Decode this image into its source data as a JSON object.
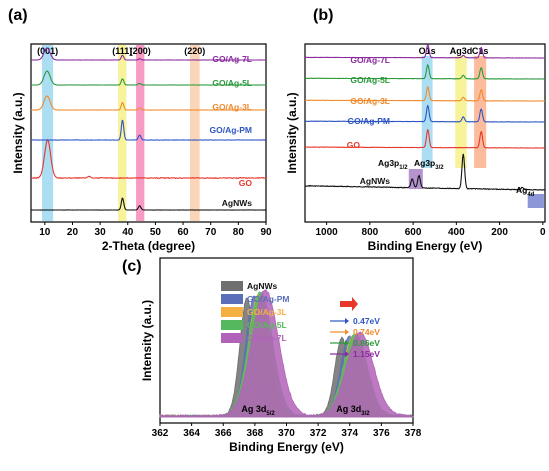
{
  "panels": {
    "a": {
      "letter": "(a)",
      "xlabel": "2-Theta (degree)",
      "ylabel": "Intensity (a.u.)"
    },
    "b": {
      "letter": "(b)",
      "xlabel": "Binding Energy (eV)",
      "ylabel": "Intensity (a.u.)"
    },
    "c": {
      "letter": "(c)",
      "xlabel": "Binding Energy (eV)",
      "ylabel": "Intensity (a.u.)"
    }
  },
  "colors": {
    "AgNWs": "#111111",
    "GO": "#e8372b",
    "GO/Ag-PM": "#2e55c4",
    "GO/Ag-3L": "#f08a2c",
    "GO/Ag-5L": "#2a9a3c",
    "GO/Ag-7L": "#8a2a9e",
    "c_AgNWs": "#6f6f6f",
    "c_GO/Ag-PM": "#5a6fb8",
    "c_GO/Ag-3L": "#f6b042",
    "c_GO/Ag-5L": "#56b85e",
    "c_GO/Ag-7L": "#b163b9"
  },
  "chart_data": [
    {
      "panel": "a",
      "type": "line",
      "xlabel": "2-Theta (degree)",
      "ylabel": "Intensity (a.u.)",
      "xlim": [
        5,
        90
      ],
      "xticks": [
        10,
        20,
        30,
        40,
        50,
        60,
        70,
        80,
        90
      ],
      "series": [
        {
          "name": "AgNWs",
          "peaks": [
            [
              38.1,
              1.0
            ],
            [
              44.3,
              0.35
            ]
          ]
        },
        {
          "name": "GO",
          "peaks": [
            [
              11.0,
              1.0
            ],
            [
              26.0,
              0.05
            ]
          ]
        },
        {
          "name": "GO/Ag-PM",
          "peaks": [
            [
              38.1,
              1.0
            ],
            [
              44.3,
              0.25
            ]
          ]
        },
        {
          "name": "GO/Ag-3L",
          "peaks": [
            [
              10.8,
              1.0
            ],
            [
              38.1,
              0.55
            ],
            [
              44.3,
              0.15
            ]
          ]
        },
        {
          "name": "GO/Ag-5L",
          "peaks": [
            [
              10.8,
              1.0
            ],
            [
              38.1,
              0.45
            ],
            [
              44.3,
              0.12
            ]
          ]
        },
        {
          "name": "GO/Ag-7L",
          "peaks": [
            [
              10.8,
              1.0
            ],
            [
              38.1,
              0.4
            ],
            [
              44.3,
              0.1
            ]
          ]
        }
      ],
      "bands": [
        {
          "label": "(001)",
          "range": [
            9,
            13
          ],
          "color": "#8fd2ef"
        },
        {
          "label": "(111)",
          "range": [
            36.5,
            39.5
          ],
          "color": "#f3ef7a"
        },
        {
          "label": "(200)",
          "range": [
            43,
            46
          ],
          "color": "#f47ab0"
        },
        {
          "label": "(220)",
          "range": [
            62.5,
            66
          ],
          "color": "#f9c79f"
        }
      ]
    },
    {
      "panel": "b",
      "type": "line",
      "xlabel": "Binding Energy (eV)",
      "ylabel": "Intensity (a.u.)",
      "xlim": [
        1100,
        -10
      ],
      "xticks": [
        1000,
        800,
        600,
        400,
        200,
        0
      ],
      "series": [
        {
          "name": "AgNWs",
          "peaks": [
            [
              573,
              0.35
            ],
            [
              604,
              0.25
            ],
            [
              368,
              1.0
            ],
            [
              95,
              0.06
            ]
          ]
        },
        {
          "name": "GO",
          "peaks": [
            [
              532,
              1.0
            ],
            [
              285,
              0.9
            ]
          ]
        },
        {
          "name": "GO/Ag-PM",
          "peaks": [
            [
              532,
              1.0
            ],
            [
              368,
              0.3
            ],
            [
              285,
              0.8
            ]
          ]
        },
        {
          "name": "GO/Ag-3L",
          "peaks": [
            [
              532,
              1.0
            ],
            [
              368,
              0.25
            ],
            [
              285,
              0.8
            ]
          ]
        },
        {
          "name": "GO/Ag-5L",
          "peaks": [
            [
              532,
              1.0
            ],
            [
              368,
              0.25
            ],
            [
              285,
              0.8
            ]
          ]
        },
        {
          "name": "GO/Ag-7L",
          "peaks": [
            [
              532,
              1.0
            ],
            [
              368,
              0.2
            ],
            [
              285,
              0.8
            ]
          ]
        }
      ],
      "bands": [
        {
          "label": "O1s",
          "range": [
            510,
            560
          ],
          "color": "#8fd2ef"
        },
        {
          "label": "Ag3d",
          "range": [
            352,
            405
          ],
          "color": "#f3ef7a"
        },
        {
          "label": "C1s",
          "range": [
            262,
            318
          ],
          "color": "#f9a57d"
        },
        {
          "label": "Ag3p",
          "range": [
            555,
            620
          ],
          "color": "#9b6fbf"
        },
        {
          "label": "Ag4d",
          "range": [
            -5,
            70
          ],
          "color": "#6674c9"
        }
      ],
      "annotations": [
        "Ag3p1/2",
        "Ag3p3/2",
        "Ag4d"
      ]
    },
    {
      "panel": "c",
      "type": "area",
      "xlabel": "Binding Energy (eV)",
      "ylabel": "Intensity (a.u.)",
      "xlim": [
        362,
        378
      ],
      "xticks": [
        362,
        364,
        366,
        368,
        370,
        372,
        374,
        376,
        378
      ],
      "series": [
        {
          "name": "AgNWs",
          "peaks": [
            367.5,
            373.5
          ],
          "shift_eV": 0
        },
        {
          "name": "GO/Ag-PM",
          "peaks": [
            367.97,
            373.97
          ],
          "shift_eV": 0.47
        },
        {
          "name": "GO/Ag-3L",
          "peaks": [
            368.24,
            374.24
          ],
          "shift_eV": 0.74
        },
        {
          "name": "GO/Ag-5L",
          "peaks": [
            368.36,
            374.36
          ],
          "shift_eV": 0.86
        },
        {
          "name": "GO/Ag-7L",
          "peaks": [
            368.65,
            374.65
          ],
          "shift_eV": 1.15
        }
      ],
      "shift_labels": [
        "0.47eV",
        "0.74eV",
        "0.86eV",
        "1.15eV"
      ],
      "peak_labels": [
        "Ag 3d5/2",
        "Ag 3d3/2"
      ]
    }
  ]
}
